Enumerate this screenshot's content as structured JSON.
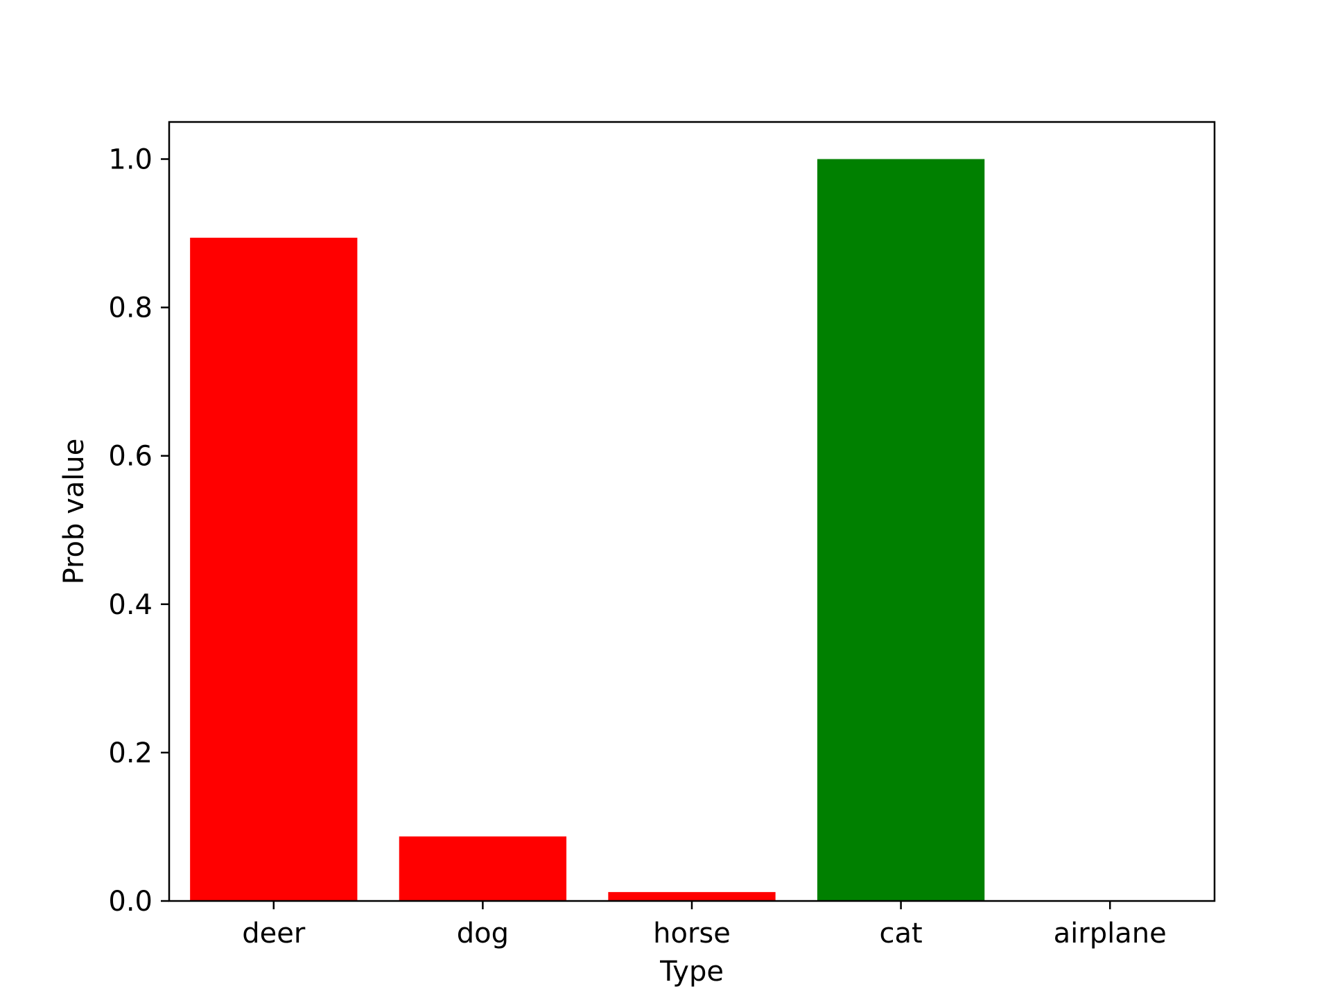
{
  "chart_data": {
    "type": "bar",
    "xlabel": "Type",
    "ylabel": "Prob value",
    "categories": [
      "deer",
      "dog",
      "horse",
      "cat",
      "airplane"
    ],
    "values": [
      0.894,
      0.087,
      0.012,
      1.0,
      0.0
    ],
    "bar_colors": [
      "#ff0000",
      "#ff0000",
      "#ff0000",
      "#008000",
      "#ff0000"
    ],
    "ylim": [
      0,
      1.05
    ],
    "yticks": [
      0.0,
      0.2,
      0.4,
      0.6,
      0.8,
      1.0
    ],
    "ytick_labels": [
      "0.0",
      "0.2",
      "0.4",
      "0.6",
      "0.8",
      "1.0"
    ],
    "grid": false,
    "legend": false
  }
}
